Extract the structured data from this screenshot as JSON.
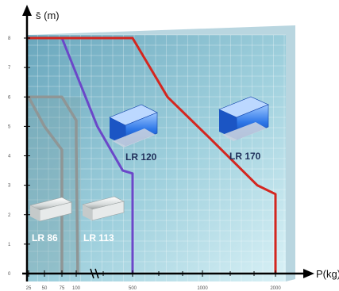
{
  "chart_data": {
    "type": "line",
    "ylabel": "s̄ (m)",
    "xlabel": "P(kg)",
    "ylim": [
      0,
      8.5
    ],
    "x_ticks": [
      {
        "value": 25,
        "label": "25"
      },
      {
        "value": 50,
        "label": "50"
      },
      {
        "value": 75,
        "label": "75"
      },
      {
        "value": 100,
        "label": "100"
      },
      {
        "value": 500,
        "label": "500"
      },
      {
        "value": 1000,
        "label": "1000"
      },
      {
        "value": 2000,
        "label": "2000"
      }
    ],
    "y_ticks": [
      0,
      1,
      2,
      3,
      4,
      5,
      6,
      7,
      8
    ],
    "grid": true,
    "series": [
      {
        "name": "LR 86",
        "color": "#8f9696",
        "points": [
          [
            0,
            6.0
          ],
          [
            25,
            6.0
          ],
          [
            50,
            5.0
          ],
          [
            75,
            4.2
          ],
          [
            75,
            0
          ]
        ]
      },
      {
        "name": "LR 113",
        "color": "#8f9696",
        "points": [
          [
            0,
            6.0
          ],
          [
            75,
            6.0
          ],
          [
            100,
            5.2
          ],
          [
            100,
            4.5
          ],
          [
            110,
            0.3
          ],
          [
            110,
            0
          ]
        ]
      },
      {
        "name": "LR 120",
        "color": "#6b47c9",
        "points": [
          [
            0,
            8.0
          ],
          [
            75,
            8.0
          ],
          [
            250,
            5.0
          ],
          [
            430,
            3.5
          ],
          [
            500,
            3.4
          ],
          [
            500,
            0
          ]
        ]
      },
      {
        "name": "LR 170",
        "color": "#d4261f",
        "points": [
          [
            0,
            8.0
          ],
          [
            500,
            8.0
          ],
          [
            750,
            6.0
          ],
          [
            1100,
            4.6
          ],
          [
            1750,
            3.0
          ],
          [
            2000,
            2.7
          ],
          [
            2000,
            0
          ]
        ]
      }
    ]
  },
  "labels": {
    "lr86": "LR 86",
    "lr113": "LR 113",
    "lr120": "LR 120",
    "lr170": "LR 170"
  },
  "icons": [
    "roller-rail-icon",
    "roller-rail-icon",
    "roller-cassette-icon",
    "roller-cassette-icon"
  ]
}
